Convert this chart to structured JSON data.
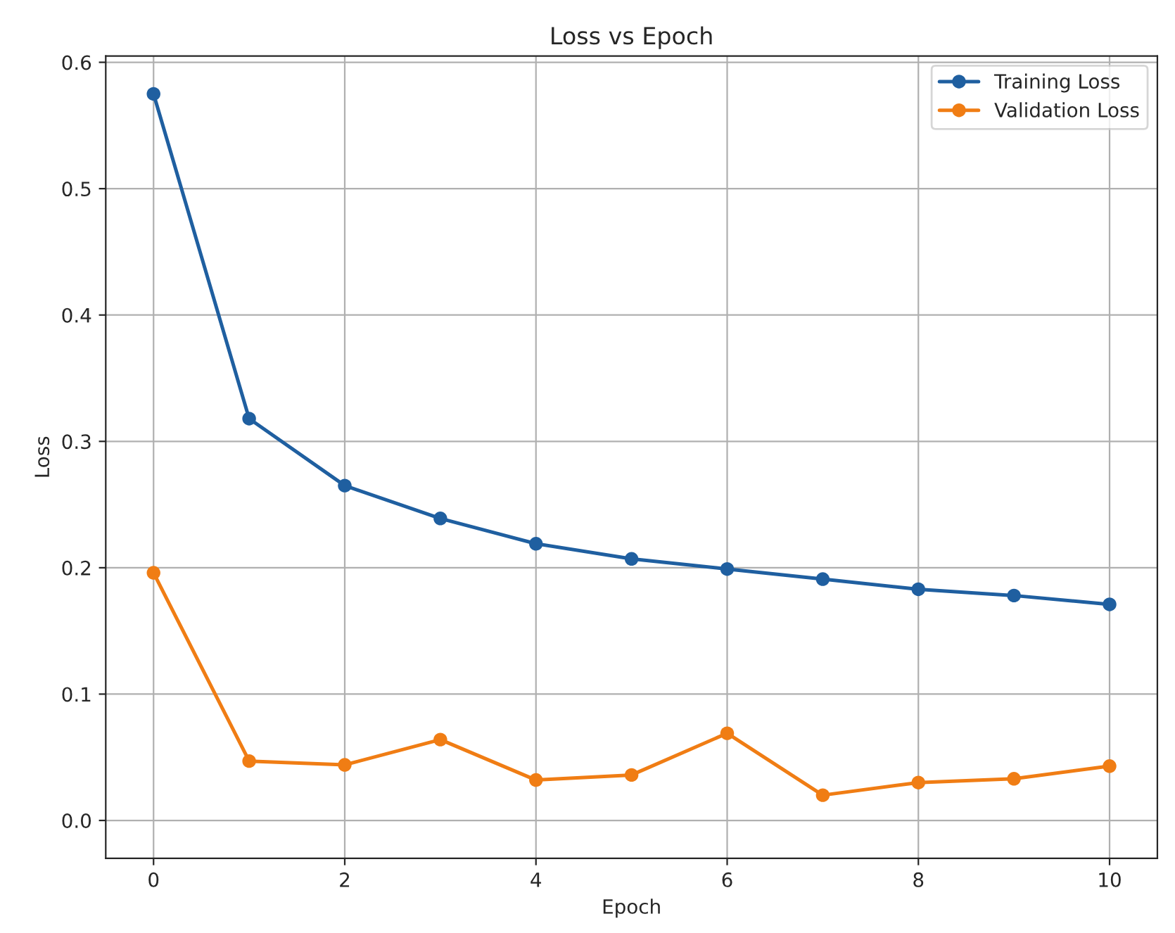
{
  "chart_data": {
    "type": "line",
    "title": "Loss vs Epoch",
    "xlabel": "Epoch",
    "ylabel": "Loss",
    "x": [
      0,
      1,
      2,
      3,
      4,
      5,
      6,
      7,
      8,
      9,
      10
    ],
    "series": [
      {
        "name": "Training Loss",
        "color": "#1f5fa0",
        "values": [
          0.575,
          0.318,
          0.265,
          0.239,
          0.219,
          0.207,
          0.199,
          0.191,
          0.183,
          0.178,
          0.171
        ]
      },
      {
        "name": "Validation Loss",
        "color": "#f07d14",
        "values": [
          0.196,
          0.047,
          0.044,
          0.064,
          0.032,
          0.036,
          0.069,
          0.02,
          0.03,
          0.033,
          0.043
        ]
      }
    ],
    "xlim": [
      -0.5,
      10.5
    ],
    "ylim": [
      -0.03,
      0.605
    ],
    "xticks": [
      0,
      2,
      4,
      6,
      8,
      10
    ],
    "yticks": [
      {
        "value": 0,
        "label": "0.0"
      },
      0.1,
      0.2,
      0.3,
      0.4,
      0.5,
      0.6
    ],
    "grid": true,
    "legend": "top right",
    "marker": "circle",
    "line_style": "solid"
  }
}
